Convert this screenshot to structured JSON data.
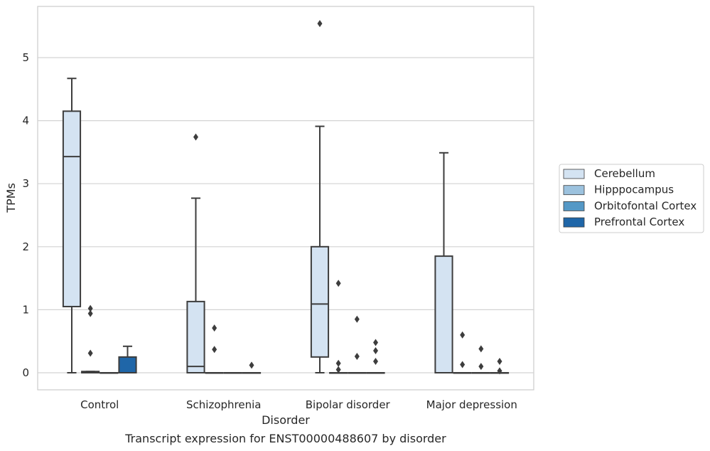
{
  "chart_data": {
    "type": "box",
    "title": "Transcript expression for ENST00000488607 by disorder",
    "xlabel": "Disorder",
    "ylabel": "TPMs",
    "categories": [
      "Control",
      "Schizophrenia",
      "Bipolar disorder",
      "Major depression"
    ],
    "ylim": [
      -0.27,
      5.82
    ],
    "yticks": [
      0,
      1,
      2,
      3,
      4,
      5
    ],
    "grid": true,
    "legend_position": "right",
    "series": [
      {
        "name": "Cerebellum",
        "color": "#d4e3f2",
        "boxes": [
          {
            "min": 0.0,
            "q1": 1.05,
            "median": 3.43,
            "q3": 4.15,
            "max": 4.67,
            "outliers": []
          },
          {
            "min": 0.0,
            "q1": 0.0,
            "median": 0.1,
            "q3": 1.13,
            "max": 2.77,
            "outliers": [
              3.74
            ]
          },
          {
            "min": 0.0,
            "q1": 0.25,
            "median": 1.09,
            "q3": 2.0,
            "max": 3.91,
            "outliers": [
              5.54
            ]
          },
          {
            "min": 0.0,
            "q1": 0.0,
            "median": 0.0,
            "q3": 1.85,
            "max": 3.49,
            "outliers": []
          }
        ]
      },
      {
        "name": "Hipppocampus",
        "color": "#9cc2de",
        "boxes": [
          {
            "min": 0.0,
            "q1": 0.0,
            "median": 0.0,
            "q3": 0.02,
            "max": 0.02,
            "outliers": [
              1.02,
              0.94,
              0.31
            ]
          },
          {
            "min": 0.0,
            "q1": 0.0,
            "median": 0.0,
            "q3": 0.0,
            "max": 0.0,
            "outliers": [
              0.71,
              0.37
            ]
          },
          {
            "min": 0.0,
            "q1": 0.0,
            "median": 0.0,
            "q3": 0.0,
            "max": 0.0,
            "outliers": [
              1.42,
              0.15,
              0.05
            ]
          },
          {
            "min": 0.0,
            "q1": 0.0,
            "median": 0.0,
            "q3": 0.0,
            "max": 0.0,
            "outliers": [
              0.6,
              0.13
            ]
          }
        ]
      },
      {
        "name": "Orbitofontal Cortex",
        "color": "#5498c6",
        "boxes": [
          {
            "min": 0.0,
            "q1": 0.0,
            "median": 0.0,
            "q3": 0.0,
            "max": 0.0,
            "outliers": []
          },
          {
            "min": 0.0,
            "q1": 0.0,
            "median": 0.0,
            "q3": 0.0,
            "max": 0.0,
            "outliers": []
          },
          {
            "min": 0.0,
            "q1": 0.0,
            "median": 0.0,
            "q3": 0.0,
            "max": 0.0,
            "outliers": [
              0.85,
              0.26
            ]
          },
          {
            "min": 0.0,
            "q1": 0.0,
            "median": 0.0,
            "q3": 0.0,
            "max": 0.0,
            "outliers": [
              0.38,
              0.1
            ]
          }
        ]
      },
      {
        "name": "Prefrontal Cortex",
        "color": "#1f66a8",
        "boxes": [
          {
            "min": 0.0,
            "q1": 0.0,
            "median": 0.0,
            "q3": 0.25,
            "max": 0.42,
            "outliers": []
          },
          {
            "min": 0.0,
            "q1": 0.0,
            "median": 0.0,
            "q3": 0.0,
            "max": 0.0,
            "outliers": [
              0.12
            ]
          },
          {
            "min": 0.0,
            "q1": 0.0,
            "median": 0.0,
            "q3": 0.0,
            "max": 0.0,
            "outliers": [
              0.48,
              0.35,
              0.18
            ]
          },
          {
            "min": 0.0,
            "q1": 0.0,
            "median": 0.0,
            "q3": 0.0,
            "max": 0.0,
            "outliers": [
              0.18,
              0.03
            ]
          }
        ]
      }
    ]
  }
}
